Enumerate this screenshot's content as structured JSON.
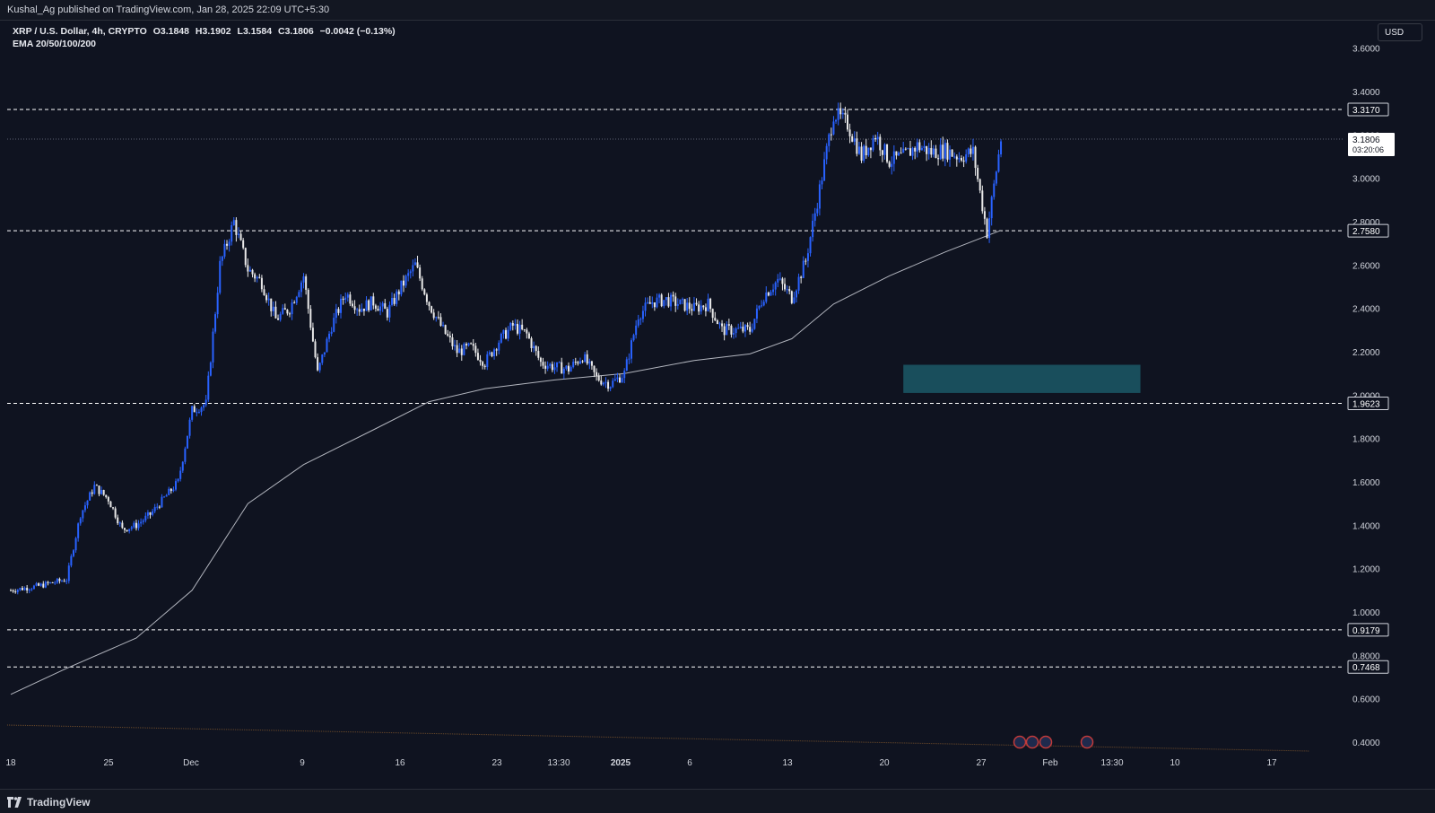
{
  "header": {
    "publisher": "Kushal_Ag published on TradingView.com, Jan 28, 2025 22:09 UTC+5:30"
  },
  "legend": {
    "symbol": "XRP / U.S. Dollar, 4h, CRYPTO",
    "open": "O3.1848",
    "high": "H3.1902",
    "low": "L3.1584",
    "close": "C3.1806",
    "change": "−0.0042 (−0.13%)",
    "indicator": "EMA 20/50/100/200"
  },
  "currency_button": "USD",
  "brand": "TradingView",
  "colors": {
    "background": "#0f1320",
    "bull_candle": "#2962ff",
    "bear_candle": "#e8e8e8",
    "ema": "#b2b5be",
    "zone": "#1b5563",
    "level_line": "#ffffff"
  },
  "chart_data": {
    "type": "candlestick",
    "symbol": "XRPUSD",
    "timeframe": "4h",
    "ylim": [
      0.3,
      3.7
    ],
    "y_ticks": [
      "3.6000",
      "3.4000",
      "3.2000",
      "3.0000",
      "2.8000",
      "2.6000",
      "2.4000",
      "2.2000",
      "2.0000",
      "1.8000",
      "1.6000",
      "1.4000",
      "1.2000",
      "1.0000",
      "0.8000",
      "0.6000",
      "0.4000"
    ],
    "x_ticks": [
      "18",
      "25",
      "Dec",
      "9",
      "16",
      "23",
      "13:30",
      "2025",
      "6",
      "13",
      "20",
      "27",
      "Feb",
      "13:30",
      "10",
      "17"
    ],
    "price_levels": [
      {
        "label": "3.3170",
        "value": 3.317
      },
      {
        "label": "2.7580",
        "value": 2.758
      },
      {
        "label": "1.9623",
        "value": 1.9623
      },
      {
        "label": "0.9179",
        "value": 0.9179
      },
      {
        "label": "0.7468",
        "value": 0.7468
      }
    ],
    "last_price": {
      "label": "3.1806",
      "countdown": "03:20:06",
      "value": 3.1806
    },
    "zone": {
      "top": 2.14,
      "bottom": 2.01,
      "x_start": "Jan 21",
      "x_end": "Feb 7"
    },
    "ema_line": [
      [
        "Nov 18",
        0.62
      ],
      [
        "Nov 22",
        0.74
      ],
      [
        "Nov 27",
        0.88
      ],
      [
        "Dec 1",
        1.1
      ],
      [
        "Dec 5",
        1.5
      ],
      [
        "Dec 9",
        1.68
      ],
      [
        "Dec 14",
        1.84
      ],
      [
        "Dec 18",
        1.97
      ],
      [
        "Dec 22",
        2.03
      ],
      [
        "Dec 27",
        2.07
      ],
      [
        "Jan 1",
        2.1
      ],
      [
        "Jan 6",
        2.16
      ],
      [
        "Jan 10",
        2.19
      ],
      [
        "Jan 13",
        2.26
      ],
      [
        "Jan 16",
        2.42
      ],
      [
        "Jan 20",
        2.55
      ],
      [
        "Jan 24",
        2.66
      ],
      [
        "Jan 28",
        2.76
      ]
    ],
    "price_path": [
      [
        "Nov 18",
        1.1
      ],
      [
        "Nov 20",
        1.12
      ],
      [
        "Nov 22",
        1.15
      ],
      [
        "Nov 23",
        1.45
      ],
      [
        "Nov 24",
        1.58
      ],
      [
        "Nov 25",
        1.52
      ],
      [
        "Nov 26",
        1.38
      ],
      [
        "Nov 27",
        1.4
      ],
      [
        "Nov 28",
        1.45
      ],
      [
        "Nov 30",
        1.6
      ],
      [
        "Dec 1",
        1.93
      ],
      [
        "Dec 2",
        1.96
      ],
      [
        "Dec 3",
        2.6
      ],
      [
        "Dec 4",
        2.8
      ],
      [
        "Dec 5",
        2.58
      ],
      [
        "Dec 6",
        2.52
      ],
      [
        "Dec 7",
        2.35
      ],
      [
        "Dec 8",
        2.4
      ],
      [
        "Dec 9",
        2.55
      ],
      [
        "Dec 10",
        2.1
      ],
      [
        "Dec 11",
        2.32
      ],
      [
        "Dec 12",
        2.47
      ],
      [
        "Dec 13",
        2.4
      ],
      [
        "Dec 14",
        2.43
      ],
      [
        "Dec 15",
        2.38
      ],
      [
        "Dec 16",
        2.5
      ],
      [
        "Dec 17",
        2.6
      ],
      [
        "Dec 18",
        2.42
      ],
      [
        "Dec 19",
        2.3
      ],
      [
        "Dec 20",
        2.2
      ],
      [
        "Dec 21",
        2.22
      ],
      [
        "Dec 22",
        2.15
      ],
      [
        "Dec 23",
        2.25
      ],
      [
        "Dec 24",
        2.32
      ],
      [
        "Dec 25",
        2.28
      ],
      [
        "Dec 26",
        2.15
      ],
      [
        "Dec 27",
        2.13
      ],
      [
        "Dec 28",
        2.12
      ],
      [
        "Dec 29",
        2.18
      ],
      [
        "Dec 30",
        2.08
      ],
      [
        "Dec 31",
        2.05
      ],
      [
        "Jan 1",
        2.1
      ],
      [
        "Jan 2",
        2.37
      ],
      [
        "Jan 3",
        2.43
      ],
      [
        "Jan 4",
        2.44
      ],
      [
        "Jan 5",
        2.42
      ],
      [
        "Jan 6",
        2.4
      ],
      [
        "Jan 7",
        2.42
      ],
      [
        "Jan 8",
        2.3
      ],
      [
        "Jan 9",
        2.3
      ],
      [
        "Jan 10",
        2.3
      ],
      [
        "Jan 11",
        2.46
      ],
      [
        "Jan 12",
        2.53
      ],
      [
        "Jan 13",
        2.45
      ],
      [
        "Jan 14",
        2.62
      ],
      [
        "Jan 15",
        2.95
      ],
      [
        "Jan 16",
        3.3
      ],
      [
        "Jan 17",
        3.25
      ],
      [
        "Jan 18",
        3.1
      ],
      [
        "Jan 19",
        3.2
      ],
      [
        "Jan 20",
        3.08
      ],
      [
        "Jan 21",
        3.1
      ],
      [
        "Jan 22",
        3.15
      ],
      [
        "Jan 23",
        3.12
      ],
      [
        "Jan 24",
        3.13
      ],
      [
        "Jan 25",
        3.1
      ],
      [
        "Jan 26",
        3.12
      ],
      [
        "Jan 27",
        2.75
      ],
      [
        "Jan 28",
        3.18
      ]
    ]
  }
}
